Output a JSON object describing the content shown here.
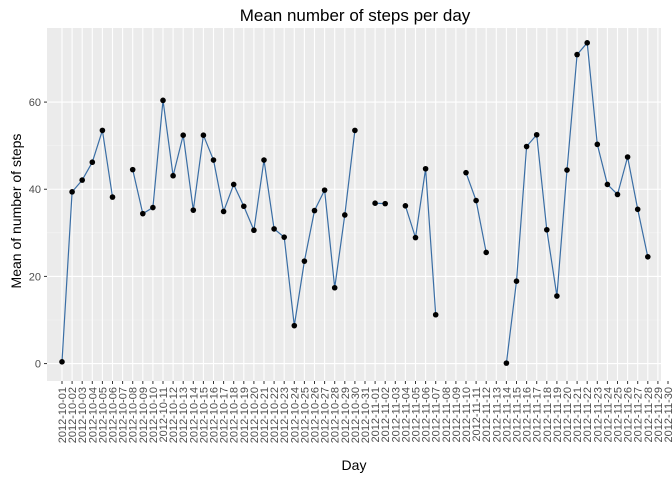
{
  "chart_data": {
    "type": "line",
    "title": "Mean number of steps per day",
    "xlabel": "Day",
    "ylabel": "Mean of number of steps",
    "ylim": [
      -4,
      77
    ],
    "y_ticks": [
      0,
      20,
      40,
      60
    ],
    "grid": true,
    "colors": {
      "panel": "#ebebeb",
      "grid_major": "#ffffff",
      "grid_minor": "#f4f4f4",
      "line": "#3a6ea5",
      "point": "#000000"
    },
    "categories": [
      "2012-10-01",
      "2012-10-02",
      "2012-10-03",
      "2012-10-04",
      "2012-10-05",
      "2012-10-06",
      "2012-10-07",
      "2012-10-08",
      "2012-10-09",
      "2012-10-10",
      "2012-10-11",
      "2012-10-12",
      "2012-10-13",
      "2012-10-14",
      "2012-10-15",
      "2012-10-16",
      "2012-10-17",
      "2012-10-18",
      "2012-10-19",
      "2012-10-20",
      "2012-10-21",
      "2012-10-22",
      "2012-10-23",
      "2012-10-24",
      "2012-10-25",
      "2012-10-26",
      "2012-10-27",
      "2012-10-28",
      "2012-10-29",
      "2012-10-30",
      "2012-10-31",
      "2012-11-01",
      "2012-11-02",
      "2012-11-03",
      "2012-11-04",
      "2012-11-05",
      "2012-11-06",
      "2012-11-07",
      "2012-11-08",
      "2012-11-09",
      "2012-11-10",
      "2012-11-11",
      "2012-11-12",
      "2012-11-13",
      "2012-11-14",
      "2012-11-15",
      "2012-11-16",
      "2012-11-17",
      "2012-11-18",
      "2012-11-19",
      "2012-11-20",
      "2012-11-21",
      "2012-11-22",
      "2012-11-23",
      "2012-11-24",
      "2012-11-25",
      "2012-11-26",
      "2012-11-27",
      "2012-11-28",
      "2012-11-29",
      "2012-11-30"
    ],
    "series": [
      {
        "name": "Mean number of steps",
        "values": [
          0.4,
          39.4,
          42.1,
          46.2,
          53.5,
          38.2,
          null,
          44.5,
          34.4,
          35.8,
          60.4,
          43.1,
          52.4,
          35.2,
          52.4,
          46.7,
          34.9,
          41.1,
          36.1,
          30.6,
          46.7,
          30.9,
          29.0,
          8.7,
          23.5,
          35.1,
          39.8,
          17.4,
          34.1,
          53.5,
          null,
          36.8,
          36.7,
          null,
          36.2,
          28.9,
          44.7,
          11.2,
          null,
          null,
          43.8,
          37.4,
          25.5,
          null,
          0.1,
          18.9,
          49.8,
          52.5,
          30.7,
          15.5,
          44.4,
          70.9,
          73.6,
          50.3,
          41.1,
          38.8,
          47.4,
          35.4,
          24.5,
          null,
          null
        ]
      }
    ]
  }
}
